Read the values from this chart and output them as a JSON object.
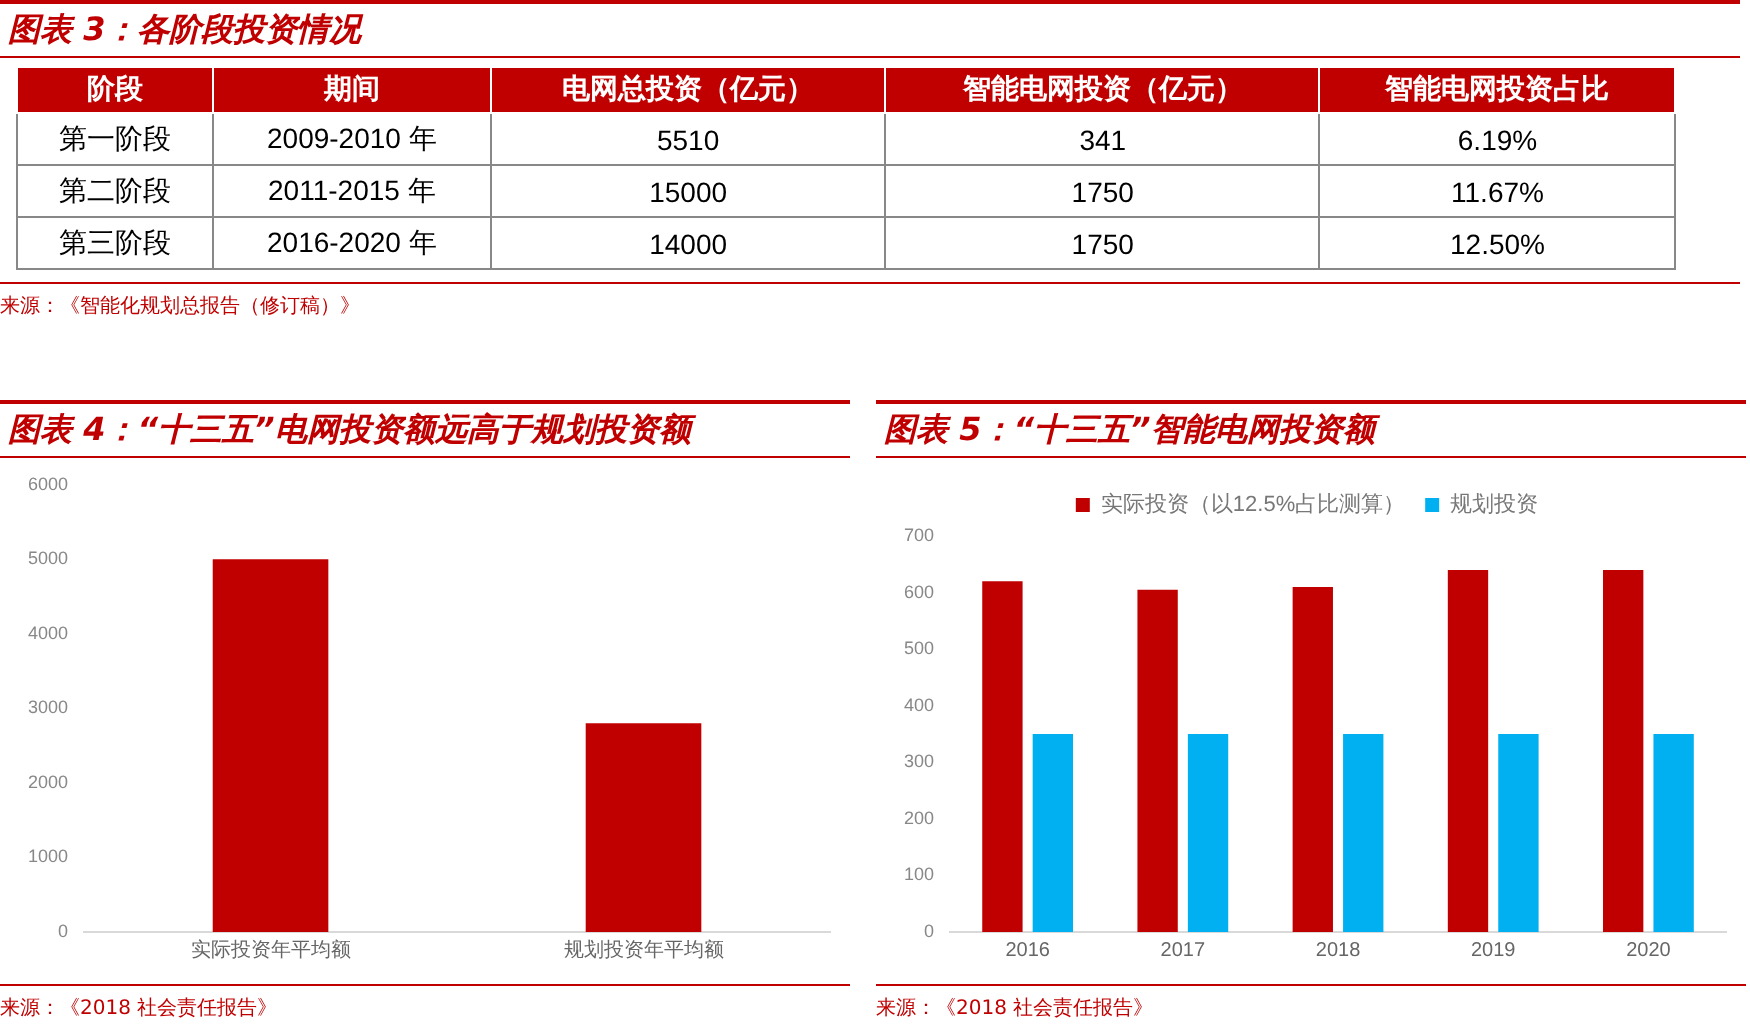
{
  "chart_data": [
    {
      "type": "other",
      "title": "图表 3：各阶段投资情况",
      "categories": [
        "阶段",
        "期间",
        "电网总投资（亿元）",
        "智能电网投资（亿元）",
        "智能电网投资占比"
      ],
      "y_categories": [
        "第一阶段",
        "第二阶段",
        "第三阶段"
      ],
      "cell_labels": [
        [
          "2009-2010 年",
          "5510",
          "341",
          "6.19%"
        ],
        [
          "2011-2015 年",
          "15000",
          "1750",
          "11.67%"
        ],
        [
          "2016-2020 年",
          "14000",
          "1750",
          "12.50%"
        ]
      ],
      "annotations": [
        "来源：《智能化规划总报告（修订稿）》"
      ]
    },
    {
      "type": "bar",
      "title": "图表 4：“十三五”电网投资额远高于规划投资额",
      "categories": [
        "实际投资年平均额",
        "规划投资年平均额"
      ],
      "values": [
        5000,
        2800
      ],
      "color": "#c00000",
      "ylim": [
        0,
        6000
      ],
      "yticks": [
        0,
        1000,
        2000,
        3000,
        4000,
        5000,
        6000
      ],
      "grid": false,
      "legend": false,
      "annotations": [
        "来源：《2018 社会责任报告》"
      ]
    },
    {
      "type": "bar",
      "title": "图表 5：“十三五”智能电网投资额",
      "categories": [
        "2016",
        "2017",
        "2018",
        "2019",
        "2020"
      ],
      "series": [
        {
          "name": "实际投资（以12.5%占比测算）",
          "color": "#c00000",
          "values": [
            620,
            605,
            610,
            640,
            640
          ]
        },
        {
          "name": "规划投资",
          "color": "#00b0f0",
          "values": [
            350,
            350,
            350,
            350,
            350
          ]
        }
      ],
      "ylim": [
        0,
        700
      ],
      "yticks": [
        0,
        100,
        200,
        300,
        400,
        500,
        600,
        700
      ],
      "grid": false,
      "legend": "top",
      "annotations": [
        "来源：《2018 社会责任报告》"
      ]
    }
  ]
}
